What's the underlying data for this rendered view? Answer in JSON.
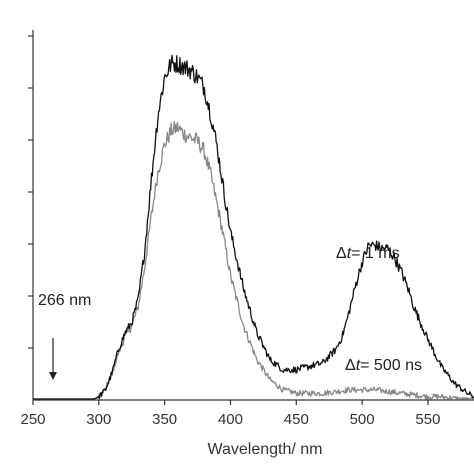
{
  "chart_data": {
    "type": "line",
    "title": "",
    "xlabel": "Wavelength/ nm",
    "ylabel": "",
    "xlim": [
      250,
      585
    ],
    "ylim": [
      0,
      1.1
    ],
    "xticks": [
      250,
      300,
      350,
      400,
      450,
      500,
      550
    ],
    "grid": false,
    "legend": "none",
    "series": [
      {
        "name": "Δt= 1 ms",
        "color": "#111111",
        "x": [
          250,
          295,
          300,
          305,
          310,
          315,
          320,
          325,
          330,
          335,
          340,
          345,
          350,
          355,
          360,
          365,
          370,
          375,
          380,
          385,
          390,
          395,
          400,
          410,
          420,
          430,
          440,
          450,
          460,
          470,
          480,
          485,
          490,
          495,
          500,
          505,
          510,
          515,
          520,
          525,
          530,
          535,
          540,
          550,
          560,
          570,
          580,
          585
        ],
        "values": [
          0.0,
          0.0,
          0.01,
          0.03,
          0.08,
          0.15,
          0.2,
          0.23,
          0.3,
          0.45,
          0.66,
          0.85,
          0.96,
          1.0,
          1.0,
          0.99,
          0.98,
          0.96,
          0.93,
          0.85,
          0.75,
          0.62,
          0.5,
          0.33,
          0.2,
          0.12,
          0.09,
          0.09,
          0.1,
          0.11,
          0.15,
          0.19,
          0.26,
          0.34,
          0.41,
          0.46,
          0.46,
          0.45,
          0.45,
          0.42,
          0.38,
          0.33,
          0.27,
          0.18,
          0.1,
          0.05,
          0.02,
          0.01
        ]
      },
      {
        "name": "Δt= 500 ns",
        "color": "#888888",
        "x": [
          250,
          295,
          300,
          305,
          310,
          315,
          320,
          325,
          330,
          335,
          340,
          345,
          350,
          355,
          360,
          365,
          370,
          375,
          380,
          385,
          390,
          395,
          400,
          410,
          420,
          430,
          440,
          450,
          460,
          470,
          480,
          490,
          500,
          510,
          520,
          530,
          540,
          550,
          560,
          570,
          580,
          585
        ],
        "values": [
          0.0,
          0.0,
          0.01,
          0.03,
          0.08,
          0.14,
          0.19,
          0.22,
          0.28,
          0.4,
          0.55,
          0.68,
          0.76,
          0.8,
          0.81,
          0.79,
          0.78,
          0.77,
          0.74,
          0.67,
          0.58,
          0.48,
          0.37,
          0.22,
          0.12,
          0.06,
          0.03,
          0.02,
          0.02,
          0.02,
          0.025,
          0.03,
          0.03,
          0.03,
          0.025,
          0.02,
          0.015,
          0.01,
          0.01,
          0.005,
          0.0,
          0.0
        ]
      }
    ],
    "annotations": [
      {
        "text": "266 nm",
        "x": 266,
        "arrow": "down"
      },
      {
        "prefix": "Δ",
        "italic": "t",
        "suffix": "= 1 ms"
      },
      {
        "prefix": "Δ",
        "italic": "t",
        "suffix": "= 500 ns"
      }
    ]
  }
}
